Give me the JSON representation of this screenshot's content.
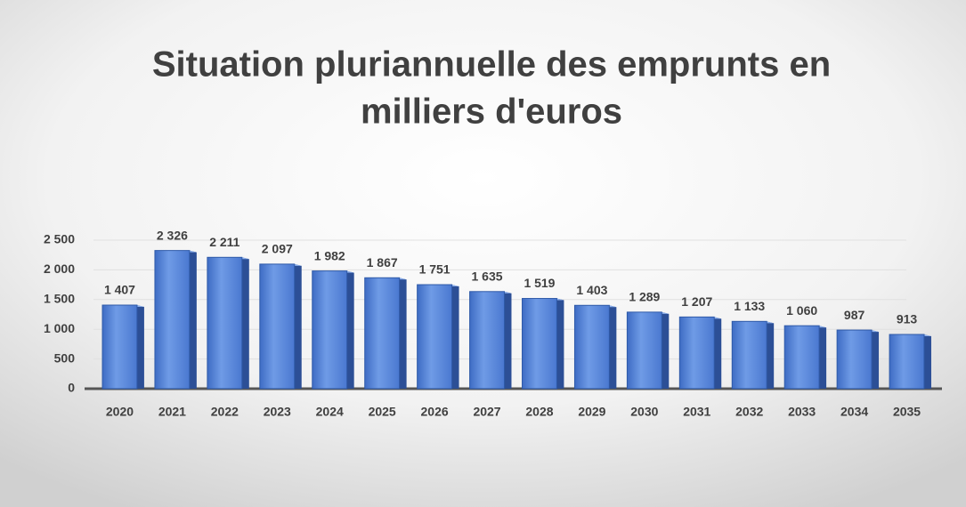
{
  "chart_data": {
    "type": "bar",
    "title": [
      "Situation pluriannuelle des emprunts en",
      "milliers d'euros"
    ],
    "categories": [
      "2020",
      "2021",
      "2022",
      "2023",
      "2024",
      "2025",
      "2026",
      "2027",
      "2028",
      "2029",
      "2030",
      "2031",
      "2032",
      "2033",
      "2034",
      "2035"
    ],
    "values": [
      1407,
      2326,
      2211,
      2097,
      1982,
      1867,
      1751,
      1635,
      1519,
      1403,
      1289,
      1207,
      1133,
      1060,
      987,
      913
    ],
    "value_labels": [
      "1 407",
      "2 326",
      "2 211",
      "2 097",
      "1 982",
      "1 867",
      "1 751",
      "1 635",
      "1 519",
      "1 403",
      "1 289",
      "1 207",
      "1 133",
      "1 060",
      "987",
      "913"
    ],
    "color": "#4f7fd6",
    "ylim": [
      0,
      2500
    ],
    "yticks": [
      0,
      500,
      {
        "value": 1000,
        "label": "1 000"
      },
      {
        "value": 1500,
        "label": "1 500"
      },
      {
        "value": 2000,
        "label": "2 000"
      },
      {
        "value": 2500,
        "label": "2 500"
      }
    ],
    "grid": true
  }
}
